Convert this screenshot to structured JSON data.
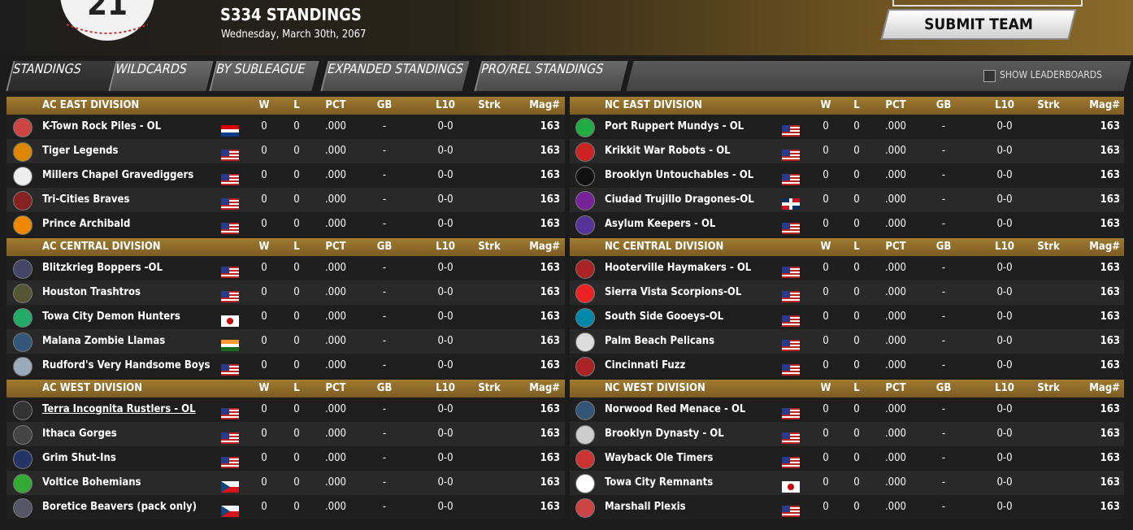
{
  "header": {
    "title": "S334 STANDINGS",
    "date": "Wednesday, March 30th, 2067",
    "submit": "SUBMIT TEAM"
  },
  "tabs": [
    "STANDINGS",
    "WILDCARDS",
    "BY SUBLEAGUE",
    "EXPANDED STANDINGS",
    "PRO/REL STANDINGS"
  ],
  "leaderboards": "SHOW LEADERBOARDS",
  "columns": [
    "W",
    "L",
    "PCT",
    "GB",
    "L10",
    "Strk",
    "Mag#"
  ],
  "divisions": [
    {
      "name": "AC EAST DIVISION",
      "teams": [
        {
          "name": "K-Town Rock Piles - OL",
          "w": 0,
          "l": 0,
          "pct": ".000",
          "gb": "-",
          "l10": "0-0",
          "mag": 163
        },
        {
          "name": "Tiger Legends",
          "w": 0,
          "l": 0,
          "pct": ".000",
          "gb": "-",
          "l10": "0-0",
          "mag": 163
        },
        {
          "name": "Millers Chapel Gravediggers",
          "w": 0,
          "l": 0,
          "pct": ".000",
          "gb": "-",
          "l10": "0-0",
          "mag": 163
        },
        {
          "name": "Tri-Cities Braves",
          "w": 0,
          "l": 0,
          "pct": ".000",
          "gb": "-",
          "l10": "0-0",
          "mag": 163
        },
        {
          "name": "Prince Archibald",
          "w": 0,
          "l": 0,
          "pct": ".000",
          "gb": "-",
          "l10": "0-0",
          "mag": 163
        }
      ]
    },
    {
      "name": "AC CENTRAL DIVISION",
      "teams": [
        {
          "name": "Blitzkrieg Boppers -OL",
          "w": 0,
          "l": 0,
          "pct": ".000",
          "gb": "-",
          "l10": "0-0",
          "mag": 163
        },
        {
          "name": "Houston Trashtros",
          "w": 0,
          "l": 0,
          "pct": ".000",
          "gb": "-",
          "l10": "0-0",
          "mag": 163
        },
        {
          "name": "Towa City Demon Hunters",
          "w": 0,
          "l": 0,
          "pct": ".000",
          "gb": "-",
          "l10": "0-0",
          "mag": 163
        },
        {
          "name": "Malana Zombie Llamas",
          "w": 0,
          "l": 0,
          "pct": ".000",
          "gb": "-",
          "l10": "0-0",
          "mag": 163
        },
        {
          "name": "Rudford's Very Handsome Boys",
          "w": 0,
          "l": 0,
          "pct": ".000",
          "gb": "-",
          "l10": "0-0",
          "mag": 163
        }
      ]
    },
    {
      "name": "AC WEST DIVISION",
      "teams": [
        {
          "name": "Terra Incognita Rustlers - OL",
          "w": 0,
          "l": 0,
          "pct": ".000",
          "gb": "-",
          "l10": "0-0",
          "mag": 163
        },
        {
          "name": "Ithaca Gorges",
          "w": 0,
          "l": 0,
          "pct": ".000",
          "gb": "-",
          "l10": "0-0",
          "mag": 163
        },
        {
          "name": "Grim Shut-Ins",
          "w": 0,
          "l": 0,
          "pct": ".000",
          "gb": "-",
          "l10": "0-0",
          "mag": 163
        },
        {
          "name": "Voltice Bohemians",
          "w": 0,
          "l": 0,
          "pct": ".000",
          "gb": "-",
          "l10": "0-0",
          "mag": 163
        },
        {
          "name": "Boretice Beavers (pack only)",
          "w": 0,
          "l": 0,
          "pct": ".000",
          "gb": "-",
          "l10": "0-0",
          "mag": 163
        }
      ]
    },
    {
      "name": "NC EAST DIVISION",
      "teams": [
        {
          "name": "Port Ruppert Mundys - OL",
          "w": 0,
          "l": 0,
          "pct": ".000",
          "gb": "-",
          "l10": "0-0",
          "mag": 163
        },
        {
          "name": "Krikkit War Robots - OL",
          "w": 0,
          "l": 0,
          "pct": ".000",
          "gb": "-",
          "l10": "0-0",
          "mag": 163
        },
        {
          "name": "Brooklyn Untouchables - OL",
          "w": 0,
          "l": 0,
          "pct": ".000",
          "gb": "-",
          "l10": "0-0",
          "mag": 163
        },
        {
          "name": "Ciudad Trujillo Dragones-OL",
          "w": 0,
          "l": 0,
          "pct": ".000",
          "gb": "-",
          "l10": "0-0",
          "mag": 163
        },
        {
          "name": "Asylum Keepers - OL",
          "w": 0,
          "l": 0,
          "pct": ".000",
          "gb": "-",
          "l10": "0-0",
          "mag": 163
        }
      ]
    },
    {
      "name": "NC CENTRAL DIVISION",
      "teams": [
        {
          "name": "Hooterville Haymakers - OL",
          "w": 0,
          "l": 0,
          "pct": ".000",
          "gb": "-",
          "l10": "0-0",
          "mag": 163
        },
        {
          "name": "Sierra Vista Scorpions-OL",
          "w": 0,
          "l": 0,
          "pct": ".000",
          "gb": "-",
          "l10": "0-0",
          "mag": 163
        },
        {
          "name": "South Side Gooeys-OL",
          "w": 0,
          "l": 0,
          "pct": ".000",
          "gb": "-",
          "l10": "0-0",
          "mag": 163
        },
        {
          "name": "Palm Beach Pelicans",
          "w": 0,
          "l": 0,
          "pct": ".000",
          "gb": "-",
          "l10": "0-0",
          "mag": 163
        },
        {
          "name": "Cincinnati Fuzz",
          "w": 0,
          "l": 0,
          "pct": ".000",
          "gb": "-",
          "l10": "0-0",
          "mag": 163
        }
      ]
    },
    {
      "name": "NC WEST DIVISION",
      "teams": [
        {
          "name": "Norwood Red Menace - OL",
          "w": 0,
          "l": 0,
          "pct": ".000",
          "gb": "-",
          "l10": "0-0",
          "mag": 163
        },
        {
          "name": "Brooklyn Dynasty - OL",
          "w": 0,
          "l": 0,
          "pct": ".000",
          "gb": "-",
          "l10": "0-0",
          "mag": 163
        },
        {
          "name": "Wayback Ole Timers",
          "w": 0,
          "l": 0,
          "pct": ".000",
          "gb": "-",
          "l10": "0-0",
          "mag": 163
        },
        {
          "name": "Towa City Remnants",
          "w": 0,
          "l": 0,
          "pct": ".000",
          "gb": "-",
          "l10": "0-0",
          "mag": 163
        },
        {
          "name": "Marshall Plexis",
          "w": 0,
          "l": 0,
          "pct": ".000",
          "gb": "-",
          "l10": "0-0",
          "mag": 163
        }
      ]
    }
  ]
}
